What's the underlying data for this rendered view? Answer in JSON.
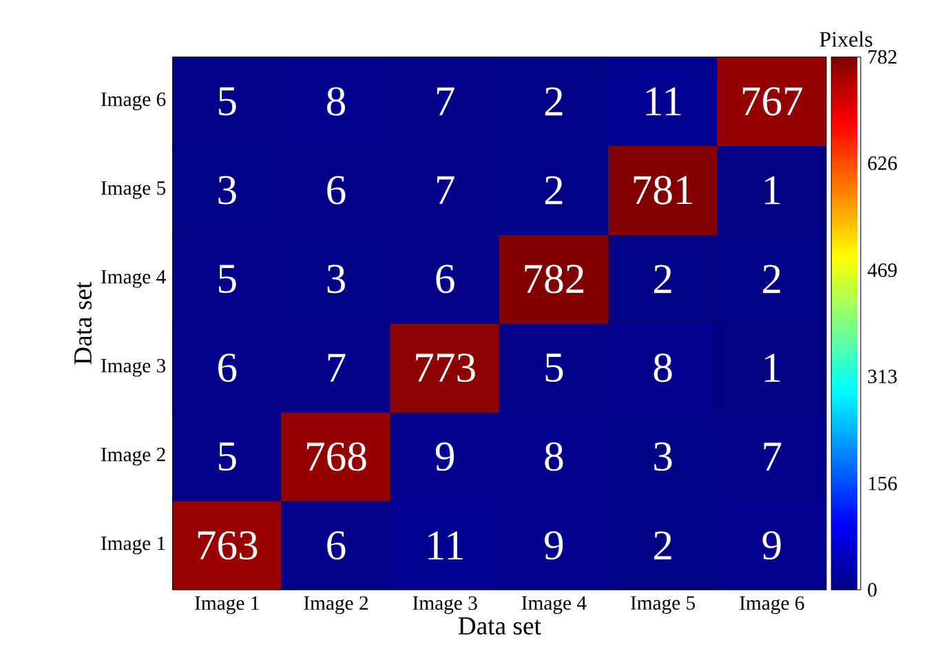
{
  "chart_data": {
    "type": "heatmap",
    "xlabel": "Data set",
    "ylabel": "Data set",
    "clabel": "Pixels",
    "categories": [
      "Image 1",
      "Image 2",
      "Image 3",
      "Image 4",
      "Image 5",
      "Image 6"
    ],
    "y_categories": [
      "Image 6",
      "Image 5",
      "Image 4",
      "Image 3",
      "Image 2",
      "Image 1"
    ],
    "cells": [
      [
        5,
        8,
        7,
        2,
        11,
        767
      ],
      [
        3,
        6,
        7,
        2,
        781,
        1
      ],
      [
        5,
        3,
        6,
        782,
        2,
        2
      ],
      [
        6,
        7,
        773,
        5,
        8,
        1
      ],
      [
        5,
        768,
        9,
        8,
        3,
        7
      ],
      [
        763,
        6,
        11,
        9,
        2,
        9
      ]
    ],
    "cell_labels": [
      [
        "5",
        "8",
        "7",
        "2",
        "11",
        "767"
      ],
      [
        "3",
        "6",
        "7",
        "2",
        "781",
        "1"
      ],
      [
        "5",
        "3",
        "6",
        "782",
        "2",
        "2"
      ],
      [
        "6",
        "7",
        "773",
        "5",
        "8",
        "1"
      ],
      [
        "5",
        "768",
        "9",
        "8",
        "3",
        "7"
      ],
      [
        "763",
        "6",
        "11",
        "9",
        "2",
        "9"
      ]
    ],
    "clim": [
      0,
      782
    ],
    "cticks": [
      0,
      156,
      313,
      469,
      626,
      782
    ]
  }
}
